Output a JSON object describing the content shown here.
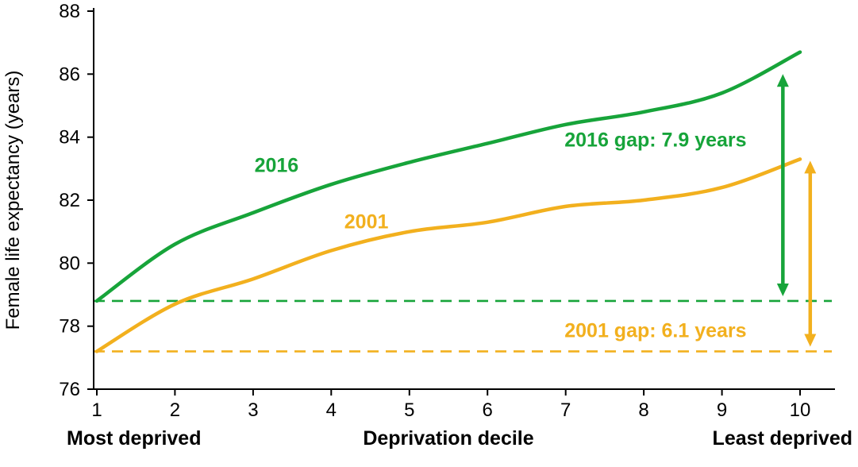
{
  "chart_data": {
    "type": "line",
    "title": "",
    "xlabel": "Deprivation decile",
    "ylabel": "Female life expectancy (years)",
    "x_axis_captions": {
      "left": "Most deprived",
      "center": "Deprivation decile",
      "right": "Least deprived"
    },
    "x": [
      1,
      2,
      3,
      4,
      5,
      6,
      7,
      8,
      9,
      10
    ],
    "xlim": [
      1,
      10
    ],
    "ylim": [
      76,
      88
    ],
    "xticks": [
      1,
      2,
      3,
      4,
      5,
      6,
      7,
      8,
      9,
      10
    ],
    "yticks": [
      76,
      78,
      80,
      82,
      84,
      86,
      88
    ],
    "grid": false,
    "legend": "inline-labels",
    "series": [
      {
        "name": "2016",
        "color": "#17a43a",
        "values": [
          78.8,
          80.6,
          81.6,
          82.5,
          83.2,
          83.8,
          84.4,
          84.8,
          85.4,
          86.7
        ],
        "label": {
          "text": "2016",
          "x": 3.3,
          "y": 82.9
        }
      },
      {
        "name": "2001",
        "color": "#f2b01e",
        "values": [
          77.2,
          78.7,
          79.5,
          80.4,
          81.0,
          81.3,
          81.8,
          82.0,
          82.4,
          83.3
        ],
        "label": {
          "text": "2001",
          "x": 4.45,
          "y": 81.1
        }
      }
    ],
    "reference_lines": [
      {
        "series": "2016",
        "y": 78.8,
        "color": "#17a43a",
        "style": "dashed"
      },
      {
        "series": "2001",
        "y": 77.2,
        "color": "#f2b01e",
        "style": "dashed"
      }
    ],
    "gap_annotations": [
      {
        "series": "2016",
        "text": "2016 gap: 7.9 years",
        "gap_years": 7.9,
        "color": "#17a43a",
        "arrow_x": 9.78,
        "arrow_y_from": 78.95,
        "arrow_y_to": 86.0,
        "label_x": 8.15,
        "label_y": 83.7
      },
      {
        "series": "2001",
        "text": "2001 gap: 6.1 years",
        "gap_years": 6.1,
        "color": "#f2b01e",
        "arrow_x": 10.13,
        "arrow_y_from": 77.35,
        "arrow_y_to": 83.25,
        "label_x": 8.15,
        "label_y": 77.65
      }
    ]
  }
}
